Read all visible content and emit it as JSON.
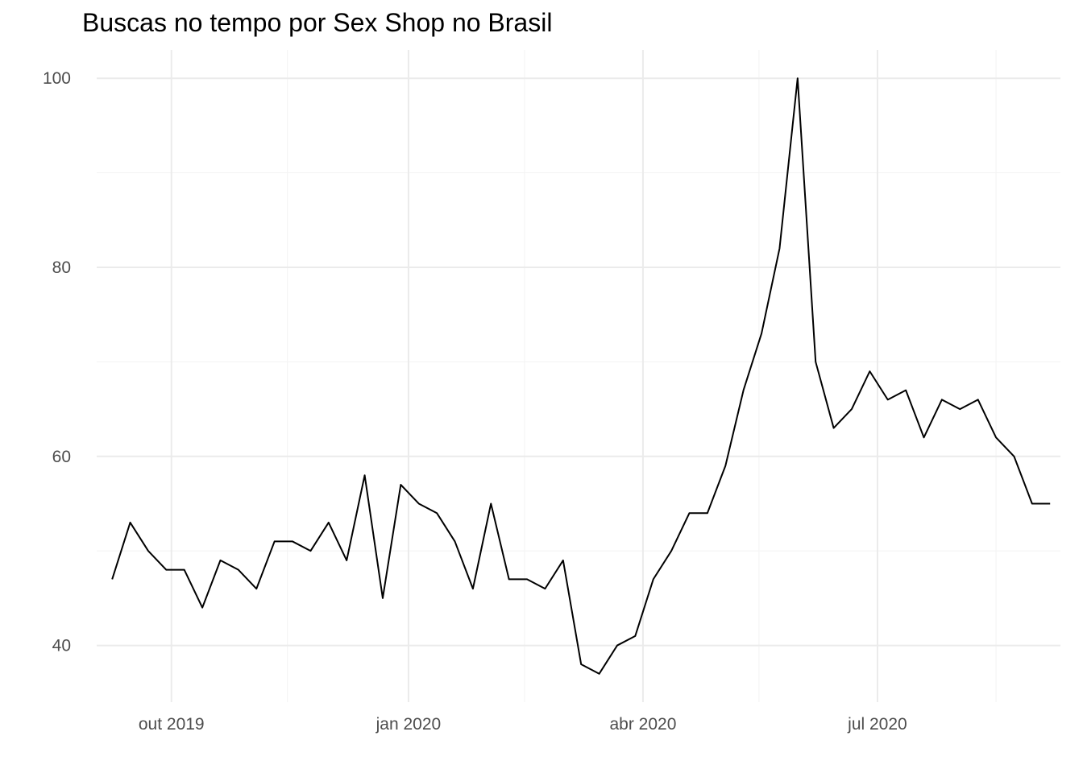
{
  "chart_data": {
    "type": "line",
    "title": "Buscas no tempo por Sex Shop no Brasil",
    "xlabel": "",
    "ylabel": "",
    "x_type": "date",
    "x": [
      "2019-09-08",
      "2019-09-15",
      "2019-09-22",
      "2019-09-29",
      "2019-10-06",
      "2019-10-13",
      "2019-10-20",
      "2019-10-27",
      "2019-11-03",
      "2019-11-10",
      "2019-11-17",
      "2019-11-24",
      "2019-12-01",
      "2019-12-08",
      "2019-12-15",
      "2019-12-22",
      "2019-12-29",
      "2020-01-05",
      "2020-01-12",
      "2020-01-19",
      "2020-01-26",
      "2020-02-02",
      "2020-02-09",
      "2020-02-16",
      "2020-02-23",
      "2020-03-01",
      "2020-03-08",
      "2020-03-15",
      "2020-03-22",
      "2020-03-29",
      "2020-04-05",
      "2020-04-12",
      "2020-04-19",
      "2020-04-26",
      "2020-05-03",
      "2020-05-10",
      "2020-05-17",
      "2020-05-24",
      "2020-05-31",
      "2020-06-07",
      "2020-06-14",
      "2020-06-21",
      "2020-06-28",
      "2020-07-05",
      "2020-07-12",
      "2020-07-19",
      "2020-07-26",
      "2020-08-02",
      "2020-08-09",
      "2020-08-16",
      "2020-08-23",
      "2020-08-30",
      "2020-09-06"
    ],
    "series": [
      {
        "values": [
          47,
          53,
          50,
          48,
          48,
          44,
          49,
          48,
          46,
          51,
          51,
          50,
          53,
          49,
          58,
          45,
          57,
          55,
          54,
          51,
          46,
          55,
          47,
          47,
          46,
          49,
          38,
          37,
          40,
          41,
          47,
          50,
          54,
          54,
          59,
          67,
          73,
          82,
          100,
          70,
          63,
          65,
          69,
          66,
          67,
          62,
          66,
          65,
          66,
          62,
          60,
          55,
          55
        ],
        "color": "#000000"
      }
    ],
    "ylim": [
      34,
      103
    ],
    "xlim": [
      "2019-09-02",
      "2020-09-10"
    ],
    "y_ticks": [
      40,
      60,
      80,
      100
    ],
    "y_tick_labels": [
      "40",
      "60",
      "80",
      "100"
    ],
    "y_minor_ticks": [
      50,
      70,
      90
    ],
    "x_ticks": [
      "2019-10-01",
      "2020-01-01",
      "2020-04-01",
      "2020-07-01"
    ],
    "x_tick_labels": [
      "out 2019",
      "jan 2020",
      "abr 2020",
      "jul 2020"
    ],
    "x_minor_ticks": [
      "2019-11-15",
      "2020-02-15",
      "2020-05-16",
      "2020-08-16"
    ],
    "grid": true,
    "legend": "none",
    "colors": {
      "line": "#000000",
      "grid_major": "#ebebeb",
      "grid_minor": "#f4f4f4",
      "tick_text": "#4d4d4d",
      "background": "#ffffff"
    }
  }
}
